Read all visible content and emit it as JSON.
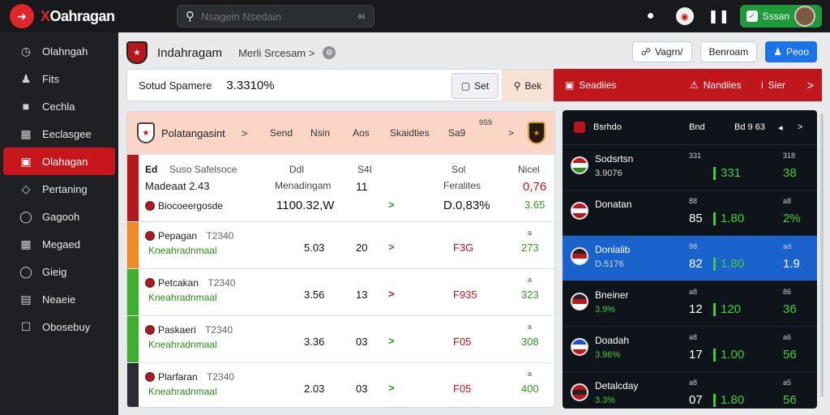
{
  "app": {
    "logo_letter": "➜",
    "logo_text_x": "X",
    "logo_text": "Oahragan"
  },
  "search": {
    "placeholder": "Nsagein Nsedain"
  },
  "topbar": {
    "bet_label": "Sssan",
    "icons": [
      "info-icon",
      "club-badge-icon",
      "pause-icon",
      "wallet-icon",
      "avatar"
    ]
  },
  "sidebar": {
    "items": [
      {
        "label": "Olahngah",
        "icon": "clock-icon"
      },
      {
        "label": "Fits",
        "icon": "user-icon"
      },
      {
        "label": "Cechla",
        "icon": "chat-icon"
      },
      {
        "label": "Eeclasgee",
        "icon": "calendar-icon"
      },
      {
        "label": "Olahagan",
        "icon": "box-icon",
        "active": true
      },
      {
        "label": "Pertaning",
        "icon": "tag-icon"
      },
      {
        "label": "Gagooh",
        "icon": "globe-icon"
      },
      {
        "label": "Megaed",
        "icon": "grid-icon"
      },
      {
        "label": "Gieig",
        "icon": "chat-bubble-icon"
      },
      {
        "label": "Neaeie",
        "icon": "list-icon"
      },
      {
        "label": "Obosebuy",
        "icon": "lock-icon"
      }
    ]
  },
  "header": {
    "title": "Indahragam",
    "crumb": "Merli Srcesam",
    "crumb_sep": ">",
    "btn_vapn": "Vagrn/",
    "btn_benroam": "Benroam",
    "btn_peoo": "Peoo"
  },
  "stats": {
    "label": "Sotud Spamere",
    "value": "3.3310%",
    "btn_set": "Set",
    "btn_bet": "Bek"
  },
  "redbar": {
    "item1": "Seadiies",
    "item2": "Nandiies",
    "item3": "Sier",
    "chevron": ">"
  },
  "table": {
    "header": {
      "title": "Polatangasint",
      "sep": ">",
      "cols": [
        "Send",
        "Nsin",
        "Aos",
        "Skaidties",
        "Sa9"
      ],
      "mini": "9S9",
      "chevron": ">"
    },
    "featured": {
      "tag": "Ed",
      "line1": "Suso Safelsoce",
      "line2": "Madeaat 2.43",
      "line3": "Biocoeergosde",
      "col_a_label": "Ddl",
      "col_a_sub": "Menadingam",
      "col_a_value": "1100.32,W",
      "col_b_label": "S4I",
      "col_b_value": "11",
      "col_c_label": "Sol",
      "col_c_sub": "Feralites",
      "col_c_value": "D.0,83%",
      "col_d_label": "Nicel",
      "col_d_value": "0,76",
      "col_d_sub": "3.65"
    },
    "rows": [
      {
        "team": "Pepagan",
        "time": "T2340",
        "sub": "Kneahradnmaal",
        "value": "5.03",
        "num": "20",
        "arrow": ">",
        "arrow_color": "#2e9a1e",
        "code": "F3G",
        "tiny": "a",
        "last": "273",
        "stripe": "#f08a24"
      },
      {
        "team": "Petcakan",
        "time": "T2340",
        "sub": "Kneahradnmaal",
        "value": "3.56",
        "num": "13",
        "arrow": ">",
        "arrow_color": "#c0161d",
        "code": "F935",
        "tiny": "a",
        "last": "323",
        "stripe": "#3eb12a"
      },
      {
        "team": "Paskaeri",
        "time": "T2340",
        "sub": "Kneahradnmaal",
        "value": "3.36",
        "num": "03",
        "arrow": ">",
        "arrow_color": "#2e9a1e",
        "code": "F05",
        "tiny": "a",
        "last": "308",
        "stripe": "#3eb12a"
      },
      {
        "team": "Plarfaran",
        "time": "T2340",
        "sub": "Kneahradnmaal",
        "value": "2.03",
        "num": "03",
        "arrow": ">",
        "arrow_color": "#2e9a1e",
        "code": "F05",
        "tiny": "a",
        "last": "400",
        "stripe": "#2a2d33"
      }
    ]
  },
  "odds": {
    "header": {
      "title": "Bsrhdo",
      "c2": "Bnd",
      "c3": "Bd 9 63",
      "c4": "◂",
      "c5": ">"
    },
    "rows": [
      {
        "name": "Sodsrtsn",
        "pct": "3.9076",
        "pct_green": false,
        "s1": "331",
        "big": "",
        "odd": "331",
        "s2": "318",
        "last": "38",
        "flag": [
          "#c0161d",
          "#ffffff",
          "#2e8b1e"
        ]
      },
      {
        "name": "Donatan",
        "pct": "",
        "pct_green": false,
        "s1": "88",
        "big": "85",
        "odd": "1.80",
        "s2": "a8",
        "last": "2%",
        "flag": [
          "#c0161d",
          "#ffffff",
          "#c0161d"
        ]
      },
      {
        "name": "Donialib",
        "pct": "D.5176",
        "pct_green": false,
        "s1": "98",
        "big": "82",
        "odd": "1.80",
        "s2": "ad",
        "last": "1.9",
        "flag": [
          "#222222",
          "#c0161d",
          "#ffffff"
        ],
        "selected": true
      },
      {
        "name": "Bneiner",
        "pct": "3.9%",
        "pct_green": true,
        "s1": "a8",
        "big": "12",
        "odd": "120",
        "s2": "86",
        "last": "36",
        "flag": [
          "#222222",
          "#c0161d",
          "#ffffff"
        ]
      },
      {
        "name": "Doadah",
        "pct": "3.96%",
        "pct_green": true,
        "s1": "a8",
        "big": "17",
        "odd": "1.00",
        "s2": "a6",
        "last": "56",
        "flag": [
          "#1a4fd6",
          "#ffffff",
          "#c0161d"
        ]
      },
      {
        "name": "Detalcday",
        "pct": "3.3%",
        "pct_green": true,
        "s1": "a8",
        "big": "07",
        "odd": "1.80",
        "s2": "a5",
        "last": "56",
        "flag": [
          "#c0161d",
          "#222222",
          "#c0161d"
        ]
      }
    ]
  }
}
